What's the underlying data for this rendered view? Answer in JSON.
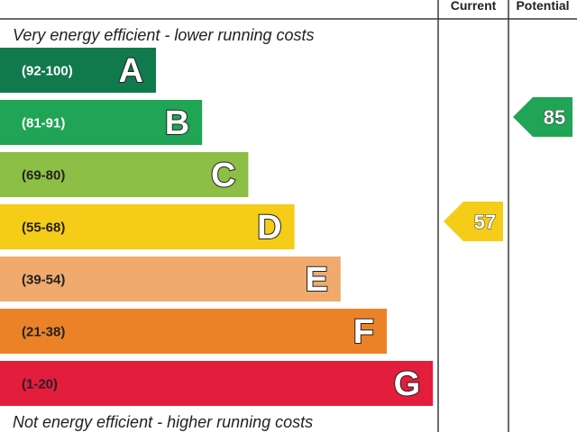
{
  "chart_data": {
    "type": "bar",
    "top_caption": "Very energy efficient - lower running costs",
    "bottom_caption": "Not energy efficient - higher running costs",
    "columns": [
      "Current",
      "Potential"
    ],
    "bands": [
      {
        "letter": "A",
        "range": "(92-100)",
        "min": 92,
        "max": 100,
        "color": "#117a4c",
        "range_color": "#ffffff"
      },
      {
        "letter": "B",
        "range": "(81-91)",
        "min": 81,
        "max": 91,
        "color": "#20a455",
        "range_color": "#ffffff"
      },
      {
        "letter": "C",
        "range": "(69-80)",
        "min": 69,
        "max": 80,
        "color": "#8dbe45",
        "range_color": "#222222"
      },
      {
        "letter": "D",
        "range": "(55-68)",
        "min": 55,
        "max": 68,
        "color": "#f5cc17",
        "range_color": "#222222"
      },
      {
        "letter": "E",
        "range": "(39-54)",
        "min": 39,
        "max": 54,
        "color": "#f0aa6e",
        "range_color": "#222222"
      },
      {
        "letter": "F",
        "range": "(21-38)",
        "min": 21,
        "max": 38,
        "color": "#ec8227",
        "range_color": "#222222"
      },
      {
        "letter": "G",
        "range": "(1-20)",
        "min": 1,
        "max": 20,
        "color": "#e31d3c",
        "range_color": "#222222"
      }
    ],
    "ratings": [
      {
        "column": "Current",
        "value": 57,
        "band": "D"
      },
      {
        "column": "Potential",
        "value": 85,
        "band": "B"
      }
    ]
  }
}
